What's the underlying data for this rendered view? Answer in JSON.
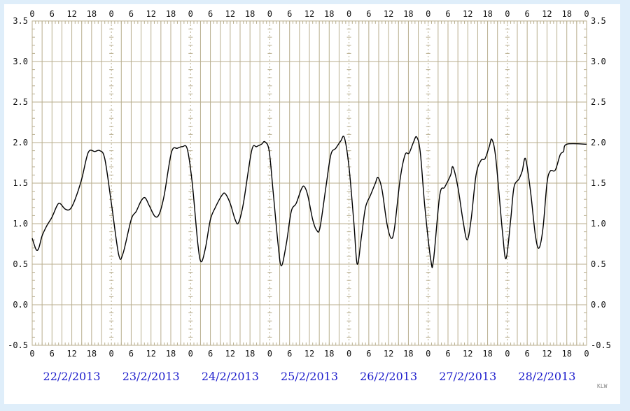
{
  "colors": {
    "background": "#dfeefa",
    "plot": "#ffffff",
    "grid": "#b8ae8e",
    "line": "#000000",
    "date_labels": "#1c1ccc"
  },
  "credit": "KLW",
  "chart_data": {
    "type": "line",
    "title": "",
    "xlabel": "",
    "ylabel": "",
    "ylim": [
      -0.5,
      3.5
    ],
    "yticks": [
      "3.5",
      "3.0",
      "2.5",
      "2.0",
      "1.5",
      "1.0",
      "0.5",
      "0.0",
      "-0.5"
    ],
    "x_tick_labels": [
      "0",
      "6",
      "12",
      "18",
      "0",
      "6",
      "12",
      "18",
      "0",
      "6",
      "12",
      "18",
      "0",
      "6",
      "12",
      "18",
      "0",
      "6",
      "12",
      "18",
      "0",
      "6",
      "12",
      "18",
      "0",
      "6",
      "12",
      "18",
      "0"
    ],
    "dates": [
      "22/2/2013",
      "23/2/2013",
      "24/2/2013",
      "25/2/2013",
      "26/2/2013",
      "27/2/2013",
      "28/2/2013"
    ],
    "x_unit": "hours since 22/2/2013 00:00",
    "grid": true,
    "series": [
      {
        "values": [
          [
            0,
            0.82
          ],
          [
            1.2,
            0.68
          ],
          [
            2,
            0.7
          ],
          [
            3,
            0.85
          ],
          [
            4.5,
            0.98
          ],
          [
            6,
            1.08
          ],
          [
            7.5,
            1.22
          ],
          [
            8.4,
            1.25
          ],
          [
            10,
            1.18
          ],
          [
            11.5,
            1.18
          ],
          [
            13,
            1.3
          ],
          [
            15,
            1.55
          ],
          [
            17,
            1.88
          ],
          [
            19,
            1.89
          ],
          [
            20.5,
            1.9
          ],
          [
            22,
            1.8
          ],
          [
            24,
            1.25
          ],
          [
            26.2,
            0.62
          ],
          [
            27.5,
            0.63
          ],
          [
            30,
            1.05
          ],
          [
            31.5,
            1.15
          ],
          [
            33,
            1.28
          ],
          [
            34.2,
            1.32
          ],
          [
            35.5,
            1.22
          ],
          [
            37.2,
            1.09
          ],
          [
            38.5,
            1.12
          ],
          [
            40,
            1.35
          ],
          [
            42.2,
            1.88
          ],
          [
            44,
            1.93
          ],
          [
            45.5,
            1.95
          ],
          [
            47,
            1.92
          ],
          [
            48.5,
            1.5
          ],
          [
            50.2,
            0.75
          ],
          [
            51.2,
            0.53
          ],
          [
            52.5,
            0.7
          ],
          [
            54,
            1.05
          ],
          [
            55.5,
            1.2
          ],
          [
            57.5,
            1.35
          ],
          [
            58.5,
            1.37
          ],
          [
            60,
            1.25
          ],
          [
            61.5,
            1.05
          ],
          [
            62.5,
            1.01
          ],
          [
            64,
            1.25
          ],
          [
            66.5,
            1.9
          ],
          [
            68,
            1.95
          ],
          [
            69.5,
            1.98
          ],
          [
            70.5,
            2.01
          ],
          [
            71.8,
            1.9
          ],
          [
            73,
            1.4
          ],
          [
            74.5,
            0.75
          ],
          [
            75.5,
            0.48
          ],
          [
            77,
            0.75
          ],
          [
            78.5,
            1.15
          ],
          [
            80,
            1.25
          ],
          [
            81.5,
            1.42
          ],
          [
            82.4,
            1.46
          ],
          [
            83.5,
            1.35
          ],
          [
            85,
            1.05
          ],
          [
            86.2,
            0.92
          ],
          [
            87.2,
            0.95
          ],
          [
            89,
            1.45
          ],
          [
            90.5,
            1.85
          ],
          [
            92,
            1.93
          ],
          [
            93.5,
            2.02
          ],
          [
            94.6,
            2.06
          ],
          [
            96,
            1.7
          ],
          [
            97.5,
            1.0
          ],
          [
            98.5,
            0.5
          ],
          [
            99.8,
            0.85
          ],
          [
            101,
            1.2
          ],
          [
            102.5,
            1.35
          ],
          [
            104,
            1.5
          ],
          [
            104.8,
            1.57
          ],
          [
            106,
            1.42
          ],
          [
            107.5,
            1.0
          ],
          [
            108.8,
            0.82
          ],
          [
            109.8,
            0.95
          ],
          [
            111.5,
            1.55
          ],
          [
            113,
            1.85
          ],
          [
            114.2,
            1.87
          ],
          [
            115.5,
            2.0
          ],
          [
            116.5,
            2.07
          ],
          [
            117.6,
            1.88
          ],
          [
            119,
            1.2
          ],
          [
            120.8,
            0.55
          ],
          [
            121.6,
            0.55
          ],
          [
            123.5,
            1.35
          ],
          [
            125,
            1.45
          ],
          [
            126.8,
            1.6
          ],
          [
            127.5,
            1.7
          ],
          [
            129,
            1.45
          ],
          [
            130.5,
            1.05
          ],
          [
            131.8,
            0.8
          ],
          [
            133,
            1.05
          ],
          [
            134.5,
            1.6
          ],
          [
            136,
            1.78
          ],
          [
            137.2,
            1.8
          ],
          [
            138.5,
            1.95
          ],
          [
            139.3,
            2.04
          ],
          [
            140.5,
            1.8
          ],
          [
            142.5,
            0.9
          ],
          [
            143.6,
            0.57
          ],
          [
            145,
            1.05
          ],
          [
            146,
            1.45
          ],
          [
            147.5,
            1.55
          ],
          [
            148.5,
            1.65
          ],
          [
            149.5,
            1.8
          ],
          [
            151,
            1.4
          ],
          [
            152.5,
            0.85
          ],
          [
            153.6,
            0.7
          ],
          [
            154.8,
            0.95
          ],
          [
            156,
            1.5
          ],
          [
            157,
            1.65
          ],
          [
            158.5,
            1.66
          ],
          [
            160,
            1.85
          ],
          [
            161,
            1.89
          ],
          [
            162,
            1.98
          ],
          [
            168,
            1.98
          ]
        ]
      }
    ]
  }
}
